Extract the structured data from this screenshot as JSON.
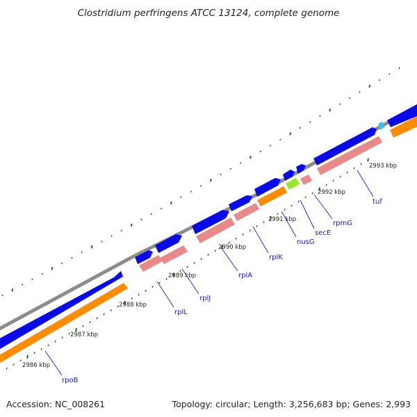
{
  "title": "Clostridium perfringens ATCC 13124, complete genome",
  "footer": {
    "accession": "Accession: NC_008261",
    "topology": "Topology: circular; Length: 3,256,683 bp; Genes: 2,993"
  },
  "colors": {
    "backbone": "#8c8c8c",
    "cds_forward": "#0a0ae6",
    "cds_reverse": "#ff8c00",
    "gene": "#e88a8a",
    "rrna_trna": "#99e62e",
    "tick": "#1e6e1e",
    "label": "#1a1aa8"
  },
  "kbp_labels": [
    "2986 kbp",
    "2987 kbp",
    "2988 kbp",
    "2989 kbp",
    "2990 kbp",
    "2991 kbp",
    "2992 kbp",
    "2993 kbp"
  ],
  "genes": [
    {
      "name": "rpoB"
    },
    {
      "name": "rplL"
    },
    {
      "name": "rplJ"
    },
    {
      "name": "rplA"
    },
    {
      "name": "rplK"
    },
    {
      "name": "nusG"
    },
    {
      "name": "secE"
    },
    {
      "name": "rpmG"
    },
    {
      "name": "tuf"
    }
  ]
}
